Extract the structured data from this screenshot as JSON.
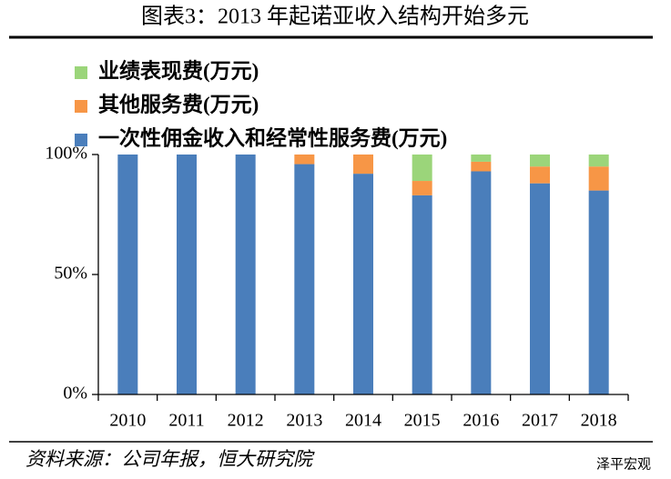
{
  "chart_data": {
    "type": "bar",
    "stacked": true,
    "title": "图表3：2013 年起诺亚收入结构开始多元",
    "source": "资料来源：公司年报，恒大研究院",
    "watermark": "泽平宏观",
    "categories": [
      "2010",
      "2011",
      "2012",
      "2013",
      "2014",
      "2015",
      "2016",
      "2017",
      "2018"
    ],
    "series": [
      {
        "name": "一次性佣金收入和经常性服务费(万元)",
        "color": "#4a7ebb",
        "values": [
          100,
          100,
          100,
          96,
          92,
          83,
          93,
          88,
          85
        ]
      },
      {
        "name": "其他服务费(万元)",
        "color": "#f79646",
        "values": [
          0,
          0,
          0,
          4,
          8,
          6,
          4,
          7,
          10
        ]
      },
      {
        "name": "业绩表现费(万元)",
        "color": "#9bd57a",
        "values": [
          0,
          0,
          0,
          0,
          0,
          11,
          3,
          5,
          5
        ]
      }
    ],
    "ylim": [
      0,
      100
    ],
    "yticks": [
      {
        "value": 0,
        "label": "0%"
      },
      {
        "value": 50,
        "label": "50%"
      },
      {
        "value": 100,
        "label": "100%"
      }
    ],
    "legend": "top-left"
  }
}
